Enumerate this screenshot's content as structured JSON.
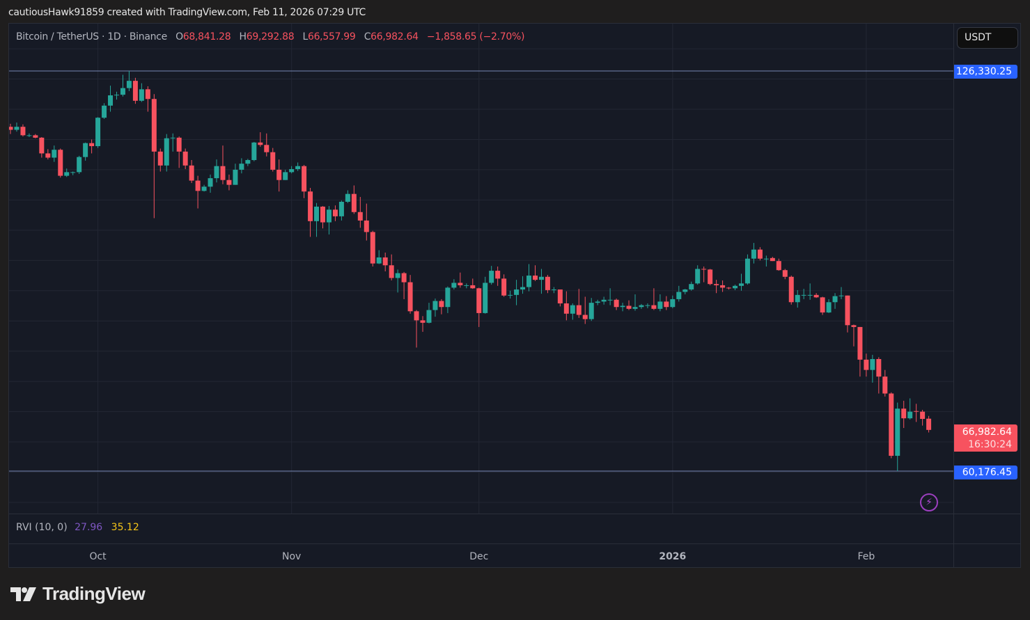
{
  "caption": "cautiousHawk91859 created with TradingView.com, Feb 11, 2026 07:29 UTC",
  "legend": {
    "symbol": "Bitcoin / TetherUS · 1D · Binance",
    "open_label": "O",
    "open": "68,841.28",
    "high_label": "H",
    "high": "69,292.88",
    "low_label": "L",
    "low": "66,557.99",
    "close_label": "C",
    "close": "66,982.64",
    "change": "−1,858.65 (−2.70%)"
  },
  "currency_button": "USDT",
  "price_labels": {
    "high_line": "126,330.25",
    "low_line": "60,176.45",
    "last_price": "66,982.64",
    "countdown": "16:30:24"
  },
  "indicator": {
    "name": "RVI (10, 0)",
    "value1": "27.96",
    "value2": "35.12"
  },
  "logo_text": "TradingView",
  "colors": {
    "up": "#26a69a",
    "down": "#f7525f",
    "line": "#2962ff",
    "background": "#161a25",
    "grid": "#232734"
  },
  "chart_data": {
    "type": "candlestick",
    "title": "Bitcoin / TetherUS · 1D · Binance",
    "grid": true,
    "y_ticks": [
      "55,000.00",
      "60,000.00",
      "65,000.00",
      "70,000.00",
      "75,000.00",
      "80,000.00",
      "85,000.00",
      "90,000.00",
      "95,000.00",
      "100,000.00",
      "105,000.00",
      "110,000.00",
      "115,000.00",
      "120,000.00",
      "125,000.00"
    ],
    "x_ticks": [
      {
        "label": "Oct",
        "date": "2025-10-01"
      },
      {
        "label": "Nov",
        "date": "2025-11-01"
      },
      {
        "label": "Dec",
        "date": "2025-12-01"
      },
      {
        "label": "2026",
        "date": "2026-01-01",
        "bold": true
      },
      {
        "label": "Feb",
        "date": "2026-02-01"
      }
    ],
    "horizontal_lines": [
      126330.25,
      60176.45
    ],
    "last_price": 66982.64,
    "columns": [
      "date",
      "open",
      "high",
      "low",
      "close"
    ],
    "candles": [
      [
        "2025-09-17",
        117100,
        117600,
        115900,
        116600
      ],
      [
        "2025-09-18",
        116600,
        117800,
        116300,
        117100
      ],
      [
        "2025-09-19",
        117100,
        117500,
        115500,
        115700
      ],
      [
        "2025-09-20",
        115700,
        116000,
        115400,
        115700
      ],
      [
        "2025-09-21",
        115700,
        115900,
        115200,
        115300
      ],
      [
        "2025-09-22",
        115300,
        115400,
        112000,
        112700
      ],
      [
        "2025-09-23",
        112700,
        113400,
        111700,
        112000
      ],
      [
        "2025-09-24",
        112000,
        114000,
        111300,
        113300
      ],
      [
        "2025-09-25",
        113300,
        113500,
        108700,
        109000
      ],
      [
        "2025-09-26",
        109000,
        110200,
        108800,
        109600
      ],
      [
        "2025-09-27",
        109600,
        109700,
        109100,
        109600
      ],
      [
        "2025-09-28",
        109600,
        112300,
        109300,
        112100
      ],
      [
        "2025-09-29",
        112100,
        114500,
        111500,
        114400
      ],
      [
        "2025-09-30",
        114400,
        115000,
        112700,
        113900
      ],
      [
        "2025-10-01",
        113900,
        118700,
        113600,
        118600
      ],
      [
        "2025-10-02",
        118600,
        121000,
        118400,
        120600
      ],
      [
        "2025-10-03",
        120600,
        123900,
        119600,
        122300
      ],
      [
        "2025-10-04",
        122300,
        122900,
        121600,
        122400
      ],
      [
        "2025-10-05",
        122400,
        125700,
        122100,
        123500
      ],
      [
        "2025-10-06",
        123500,
        126330,
        123000,
        124700
      ],
      [
        "2025-10-07",
        124700,
        125200,
        120900,
        121400
      ],
      [
        "2025-10-08",
        121400,
        124300,
        121200,
        123300
      ],
      [
        "2025-10-09",
        123300,
        123800,
        119600,
        121700
      ],
      [
        "2025-10-10",
        121700,
        122500,
        102000,
        113000
      ],
      [
        "2025-10-11",
        113000,
        113500,
        109700,
        110700
      ],
      [
        "2025-10-12",
        110700,
        115900,
        109700,
        115200
      ],
      [
        "2025-10-13",
        115200,
        116000,
        113000,
        115300
      ],
      [
        "2025-10-14",
        115300,
        115500,
        110300,
        113000
      ],
      [
        "2025-10-15",
        113000,
        113500,
        110100,
        110700
      ],
      [
        "2025-10-16",
        110700,
        111600,
        107800,
        108200
      ],
      [
        "2025-10-17",
        108200,
        109000,
        103600,
        106500
      ],
      [
        "2025-10-18",
        106500,
        107500,
        106400,
        107200
      ],
      [
        "2025-10-19",
        107200,
        109200,
        106200,
        108600
      ],
      [
        "2025-10-20",
        108600,
        111700,
        107900,
        110600
      ],
      [
        "2025-10-21",
        110600,
        114000,
        107600,
        108300
      ],
      [
        "2025-10-22",
        108300,
        109200,
        106600,
        107500
      ],
      [
        "2025-10-23",
        107500,
        111000,
        107500,
        110000
      ],
      [
        "2025-10-24",
        110000,
        111900,
        109400,
        111000
      ],
      [
        "2025-10-25",
        111000,
        111800,
        110600,
        111600
      ],
      [
        "2025-10-26",
        111600,
        114600,
        111400,
        114500
      ],
      [
        "2025-10-27",
        114500,
        116200,
        113800,
        114100
      ],
      [
        "2025-10-28",
        114100,
        116000,
        112200,
        112900
      ],
      [
        "2025-10-29",
        112900,
        113600,
        109700,
        110000
      ],
      [
        "2025-10-30",
        110000,
        111700,
        106400,
        108300
      ],
      [
        "2025-10-31",
        108300,
        110000,
        108300,
        109600
      ],
      [
        "2025-11-01",
        109600,
        110600,
        109400,
        110100
      ],
      [
        "2025-11-02",
        110100,
        111200,
        109800,
        110600
      ],
      [
        "2025-11-03",
        110600,
        110800,
        105300,
        106400
      ],
      [
        "2025-11-04",
        106400,
        107000,
        98900,
        101500
      ],
      [
        "2025-11-05",
        101500,
        104500,
        98900,
        103900
      ],
      [
        "2025-11-06",
        103900,
        104000,
        100300,
        101300
      ],
      [
        "2025-11-07",
        101300,
        104000,
        99300,
        103400
      ],
      [
        "2025-11-08",
        103400,
        104100,
        101500,
        102300
      ],
      [
        "2025-11-09",
        102300,
        104900,
        101600,
        104700
      ],
      [
        "2025-11-10",
        104700,
        106600,
        104500,
        106000
      ],
      [
        "2025-11-11",
        106000,
        107400,
        102700,
        103000
      ],
      [
        "2025-11-12",
        103000,
        105500,
        100400,
        101600
      ],
      [
        "2025-11-13",
        101600,
        104400,
        98300,
        99700
      ],
      [
        "2025-11-14",
        99700,
        99900,
        94000,
        94500
      ],
      [
        "2025-11-15",
        94500,
        96700,
        94400,
        95500
      ],
      [
        "2025-11-16",
        95500,
        96300,
        93200,
        94200
      ],
      [
        "2025-11-17",
        94200,
        96000,
        91700,
        92100
      ],
      [
        "2025-11-18",
        92100,
        93500,
        89700,
        92900
      ],
      [
        "2025-11-19",
        92900,
        93100,
        88600,
        91400
      ],
      [
        "2025-11-20",
        91400,
        92600,
        86200,
        86600
      ],
      [
        "2025-11-21",
        86600,
        86800,
        80600,
        85100
      ],
      [
        "2025-11-22",
        85100,
        85800,
        83200,
        84700
      ],
      [
        "2025-11-23",
        84700,
        88000,
        84600,
        86800
      ],
      [
        "2025-11-24",
        86800,
        88700,
        85700,
        88300
      ],
      [
        "2025-11-25",
        88300,
        88600,
        86100,
        87300
      ],
      [
        "2025-11-26",
        87300,
        90700,
        86300,
        90500
      ],
      [
        "2025-11-27",
        90500,
        91900,
        90200,
        91300
      ],
      [
        "2025-11-28",
        91300,
        93000,
        90500,
        90900
      ],
      [
        "2025-11-29",
        90900,
        91200,
        90400,
        90900
      ],
      [
        "2025-11-30",
        90900,
        92000,
        90300,
        90400
      ],
      [
        "2025-12-01",
        90400,
        90500,
        84000,
        86300
      ],
      [
        "2025-12-02",
        86300,
        92300,
        86200,
        91300
      ],
      [
        "2025-12-03",
        91300,
        94100,
        91000,
        93300
      ],
      [
        "2025-12-04",
        93300,
        94000,
        90800,
        92000
      ],
      [
        "2025-12-05",
        92000,
        92700,
        89000,
        89200
      ],
      [
        "2025-12-06",
        89200,
        90000,
        88700,
        89300
      ],
      [
        "2025-12-07",
        89300,
        91800,
        87600,
        90200
      ],
      [
        "2025-12-08",
        90200,
        92400,
        89500,
        90600
      ],
      [
        "2025-12-09",
        90600,
        94400,
        89900,
        92500
      ],
      [
        "2025-12-10",
        92500,
        94200,
        91600,
        91800
      ],
      [
        "2025-12-11",
        91800,
        93600,
        89500,
        92300
      ],
      [
        "2025-12-12",
        92300,
        92600,
        89600,
        90100
      ],
      [
        "2025-12-13",
        90100,
        90600,
        89600,
        90200
      ],
      [
        "2025-12-14",
        90200,
        90200,
        87400,
        87900
      ],
      [
        "2025-12-15",
        87900,
        89900,
        85100,
        86200
      ],
      [
        "2025-12-16",
        86200,
        87900,
        85200,
        87600
      ],
      [
        "2025-12-17",
        87600,
        90300,
        85500,
        86000
      ],
      [
        "2025-12-18",
        86000,
        89000,
        84500,
        85300
      ],
      [
        "2025-12-19",
        85300,
        88800,
        85000,
        88000
      ],
      [
        "2025-12-20",
        88000,
        88500,
        87600,
        88200
      ],
      [
        "2025-12-21",
        88200,
        89000,
        87700,
        88500
      ],
      [
        "2025-12-22",
        88500,
        90400,
        87600,
        88500
      ],
      [
        "2025-12-23",
        88500,
        88700,
        86800,
        87300
      ],
      [
        "2025-12-24",
        87300,
        88000,
        86600,
        87500
      ],
      [
        "2025-12-25",
        87500,
        88400,
        86800,
        87000
      ],
      [
        "2025-12-26",
        87000,
        89400,
        86700,
        87300
      ],
      [
        "2025-12-27",
        87300,
        87800,
        87000,
        87600
      ],
      [
        "2025-12-28",
        87600,
        87900,
        87100,
        87600
      ],
      [
        "2025-12-29",
        87600,
        90400,
        86800,
        87000
      ],
      [
        "2025-12-30",
        87000,
        89400,
        86600,
        88200
      ],
      [
        "2025-12-31",
        88200,
        89100,
        86800,
        87300
      ],
      [
        "2026-01-01",
        87300,
        89200,
        87100,
        88600
      ],
      [
        "2026-01-02",
        88600,
        90800,
        88200,
        89800
      ],
      [
        "2026-01-03",
        89800,
        90300,
        89400,
        90200
      ],
      [
        "2026-01-04",
        90200,
        91500,
        90000,
        91100
      ],
      [
        "2026-01-05",
        91200,
        94200,
        91000,
        93600
      ],
      [
        "2026-01-06",
        93600,
        94000,
        91400,
        93500
      ],
      [
        "2026-01-07",
        93500,
        93600,
        90900,
        91100
      ],
      [
        "2026-01-08",
        91100,
        91800,
        89600,
        90900
      ],
      [
        "2026-01-09",
        90900,
        91700,
        89800,
        90500
      ],
      [
        "2026-01-10",
        90500,
        90600,
        90200,
        90400
      ],
      [
        "2026-01-11",
        90400,
        91000,
        90100,
        90800
      ],
      [
        "2026-01-12",
        90800,
        92800,
        90000,
        91200
      ],
      [
        "2026-01-13",
        91200,
        96000,
        91000,
        95300
      ],
      [
        "2026-01-14",
        95300,
        97900,
        94500,
        96800
      ],
      [
        "2026-01-15",
        96800,
        97200,
        95000,
        95300
      ],
      [
        "2026-01-16",
        95300,
        95800,
        94000,
        95300
      ],
      [
        "2026-01-17",
        95400,
        95600,
        94900,
        94900
      ],
      [
        "2026-01-18",
        94900,
        95300,
        93300,
        93400
      ],
      [
        "2026-01-19",
        93400,
        93600,
        91900,
        92300
      ],
      [
        "2026-01-20",
        92300,
        92500,
        87700,
        88100
      ],
      [
        "2026-01-21",
        88100,
        90100,
        87200,
        89300
      ],
      [
        "2026-01-22",
        89300,
        90300,
        88600,
        89300
      ],
      [
        "2026-01-23",
        89300,
        91200,
        88500,
        89300
      ],
      [
        "2026-01-24",
        89300,
        89600,
        88800,
        88900
      ],
      [
        "2026-01-25",
        88900,
        89000,
        86000,
        86400
      ],
      [
        "2026-01-26",
        86400,
        88600,
        86300,
        88100
      ],
      [
        "2026-01-27",
        88100,
        89600,
        87000,
        89100
      ],
      [
        "2026-01-28",
        89100,
        90600,
        88600,
        89200
      ],
      [
        "2026-01-29",
        89200,
        89200,
        83100,
        84300
      ],
      [
        "2026-01-30",
        84300,
        84400,
        80800,
        84000
      ],
      [
        "2026-01-31",
        84000,
        84000,
        75800,
        78600
      ],
      [
        "2026-02-01",
        78600,
        79600,
        75800,
        76900
      ],
      [
        "2026-02-02",
        76900,
        79400,
        74800,
        78700
      ],
      [
        "2026-02-03",
        78700,
        79000,
        73000,
        75800
      ],
      [
        "2026-02-04",
        75800,
        76900,
        72500,
        73000
      ],
      [
        "2026-02-05",
        73000,
        73200,
        62300,
        62700
      ],
      [
        "2026-02-06",
        62700,
        71500,
        60176,
        70500
      ],
      [
        "2026-02-07",
        70500,
        71800,
        67300,
        68900
      ],
      [
        "2026-02-08",
        68900,
        72200,
        68700,
        70000
      ],
      [
        "2026-02-09",
        70100,
        71300,
        68300,
        70000
      ],
      [
        "2026-02-10",
        70000,
        70300,
        67700,
        68800
      ],
      [
        "2026-02-11",
        68841.28,
        69292.88,
        66557.99,
        66982.64
      ]
    ]
  }
}
